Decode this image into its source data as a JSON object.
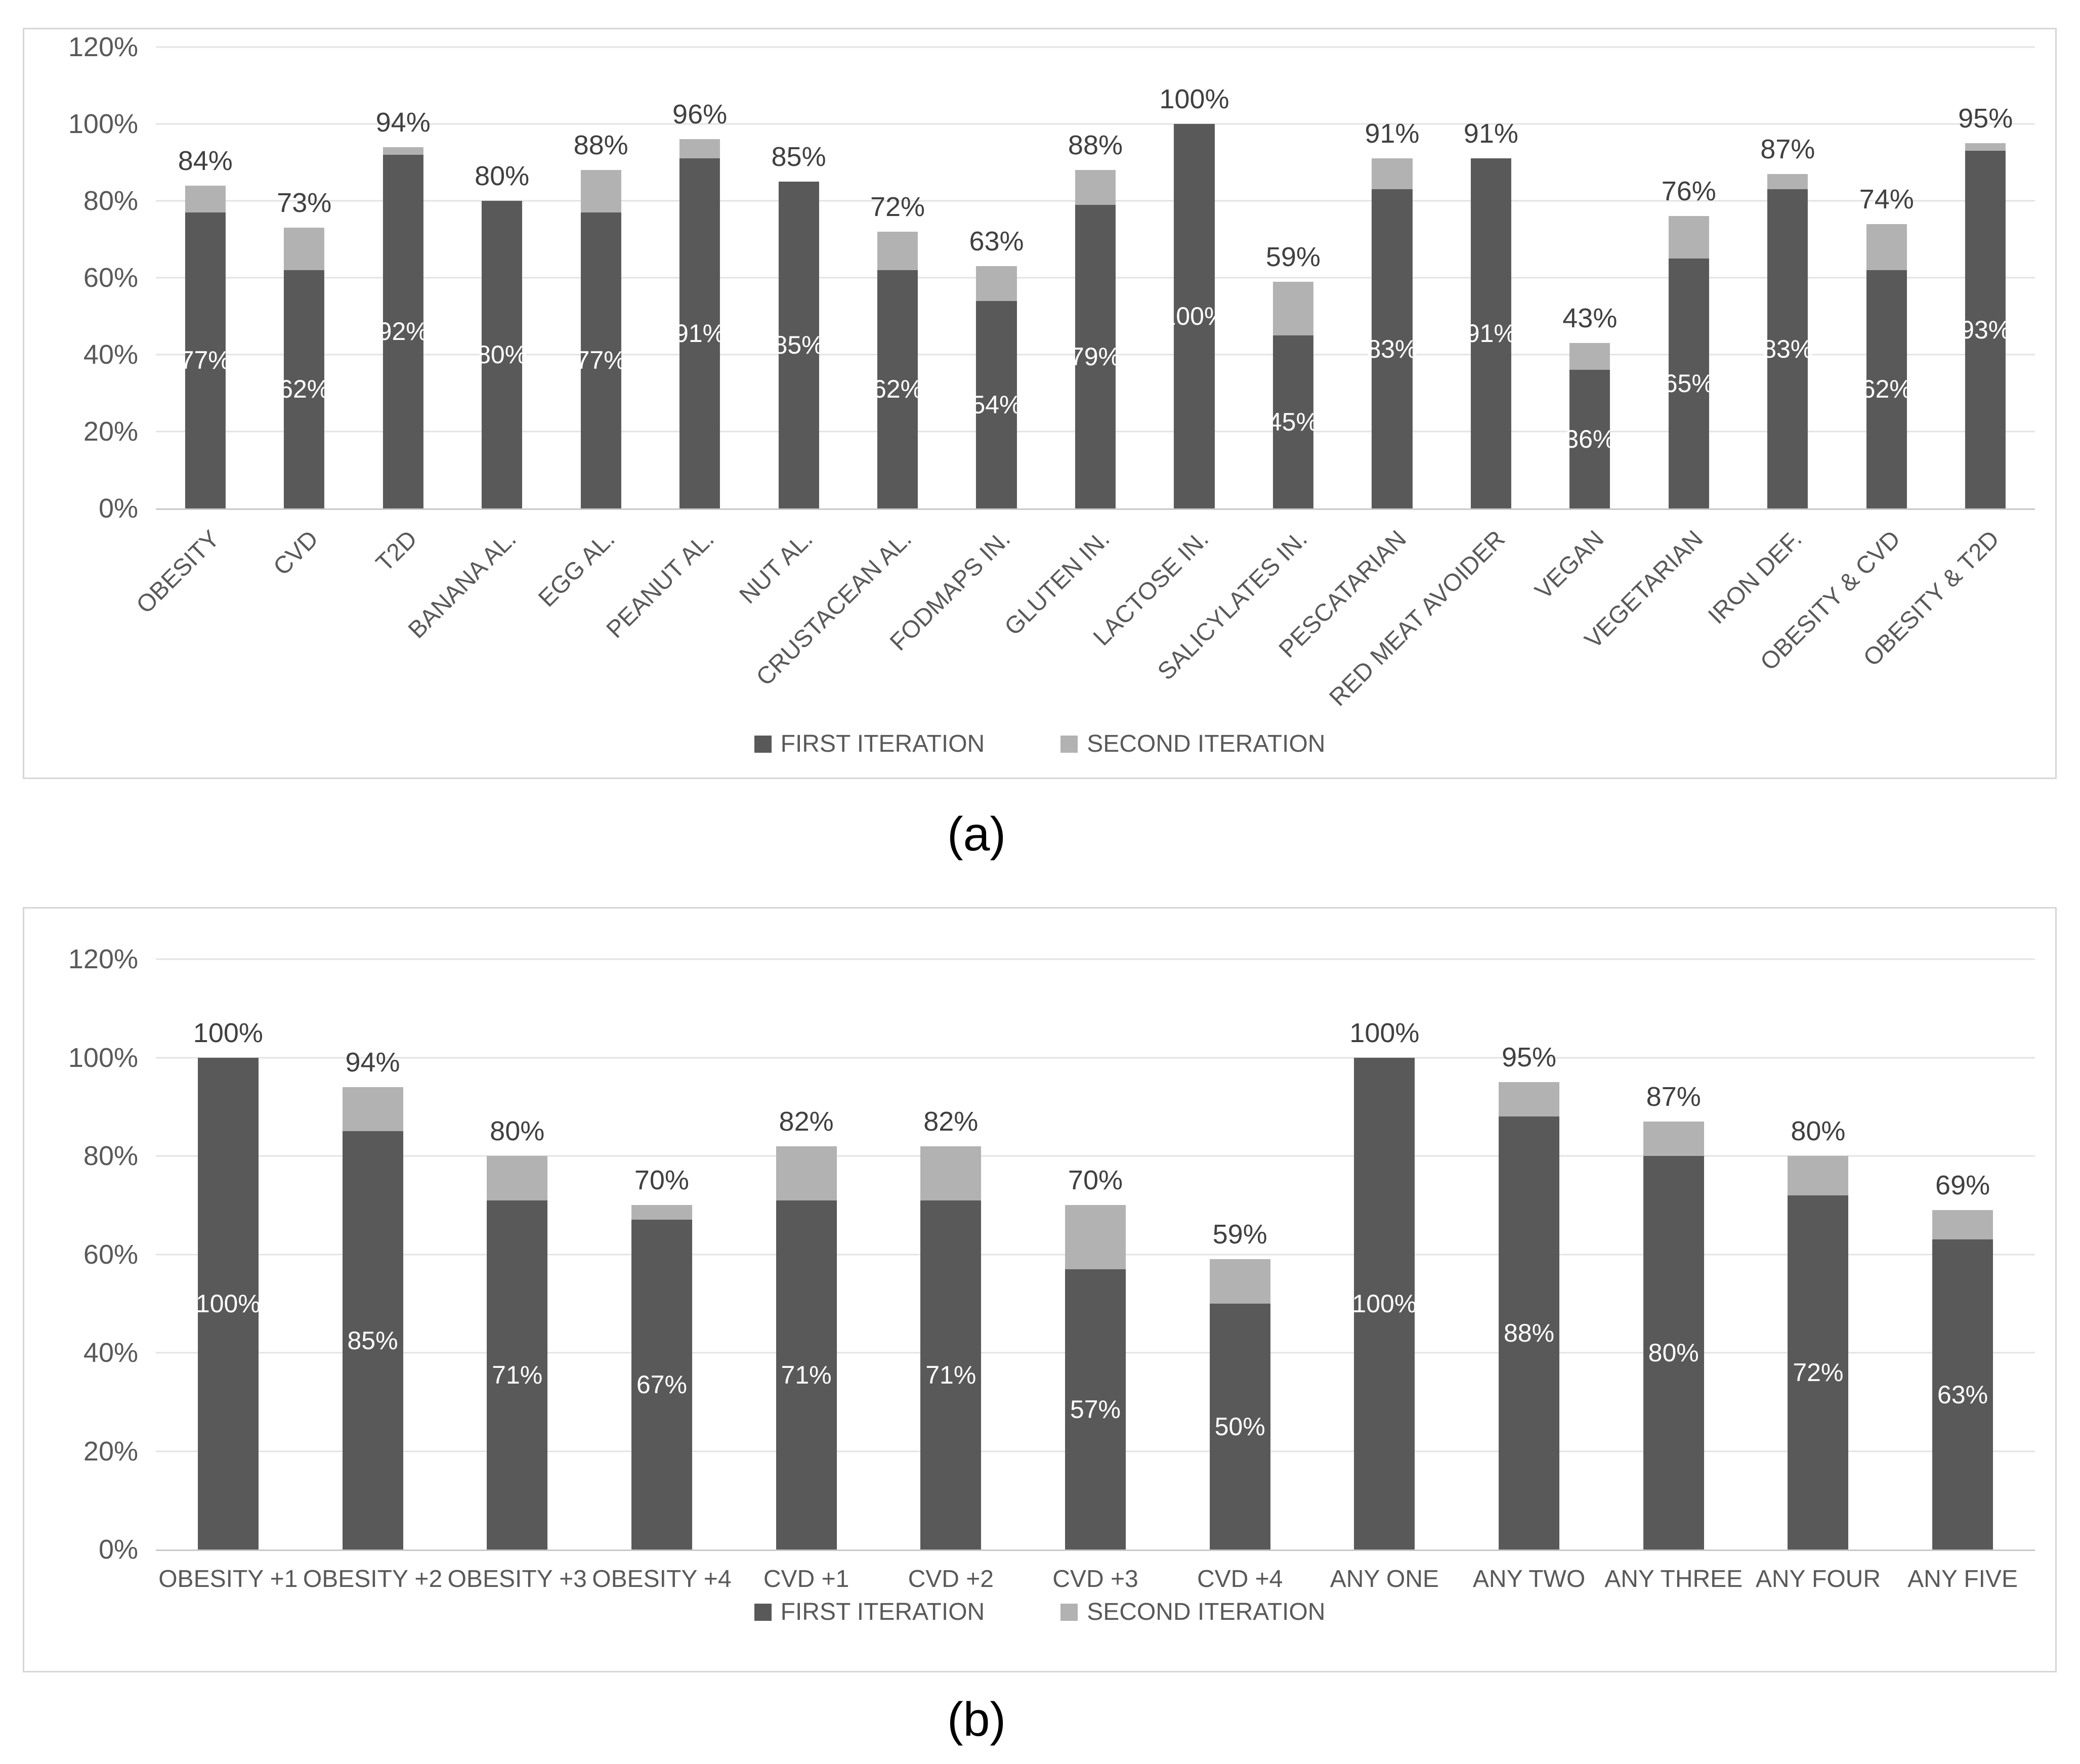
{
  "captions": {
    "a": "(a)",
    "b": "(b)"
  },
  "colors": {
    "first_iteration": "#595959",
    "second_iteration": "#b2b2b2",
    "gridline": "#e3e3e3",
    "axis_line": "#c8c8c8",
    "tick_label": "#595959",
    "total_label": "#404040",
    "inside_label": "#ffffff",
    "panel_border": "#d6d6d6"
  },
  "chart_data": [
    {
      "id": "a",
      "type": "bar",
      "stacked": true,
      "title": "",
      "xlabel": "",
      "ylabel": "",
      "ylim": [
        0,
        120
      ],
      "y_ticks": [
        "0%",
        "20%",
        "40%",
        "60%",
        "80%",
        "100%",
        "120%"
      ],
      "grid": true,
      "legend_position": "bottom",
      "category_label_rotation": -45,
      "categories": [
        "OBESITY",
        "CVD",
        "T2D",
        "BANANA AL.",
        "EGG AL.",
        "PEANUT AL.",
        "NUT AL.",
        "CRUSTACEAN AL.",
        "FODMAPS IN.",
        "GLUTEN IN.",
        "LACTOSE IN.",
        "SALICYLATES IN.",
        "PESCATARIAN",
        "RED MEAT AVOIDER",
        "VEGAN",
        "VEGETARIAN",
        "IRON DEF.",
        "OBESITY & CVD",
        "OBESITY & T2D"
      ],
      "series": [
        {
          "name": "FIRST ITERATION",
          "values": [
            77,
            62,
            92,
            80,
            77,
            91,
            85,
            62,
            54,
            79,
            100,
            45,
            83,
            91,
            36,
            65,
            83,
            62,
            93
          ]
        },
        {
          "name": "SECOND ITERATION",
          "values": [
            7,
            11,
            2,
            0,
            11,
            5,
            0,
            10,
            9,
            9,
            0,
            14,
            8,
            0,
            7,
            11,
            4,
            12,
            2
          ]
        }
      ],
      "totals": [
        84,
        73,
        94,
        80,
        88,
        96,
        85,
        72,
        63,
        88,
        100,
        59,
        91,
        91,
        43,
        76,
        87,
        74,
        95
      ]
    },
    {
      "id": "b",
      "type": "bar",
      "stacked": true,
      "title": "",
      "xlabel": "",
      "ylabel": "",
      "ylim": [
        0,
        120
      ],
      "y_ticks": [
        "0%",
        "20%",
        "40%",
        "60%",
        "80%",
        "100%",
        "120%"
      ],
      "grid": true,
      "legend_position": "bottom",
      "category_label_rotation": 0,
      "categories": [
        "OBESITY +1",
        "OBESITY +2",
        "OBESITY +3",
        "OBESITY +4",
        "CVD +1",
        "CVD +2",
        "CVD +3",
        "CVD +4",
        "ANY ONE",
        "ANY TWO",
        "ANY THREE",
        "ANY FOUR",
        "ANY FIVE"
      ],
      "series": [
        {
          "name": "FIRST ITERATION",
          "values": [
            100,
            85,
            71,
            67,
            71,
            71,
            57,
            50,
            100,
            88,
            80,
            72,
            63
          ]
        },
        {
          "name": "SECOND ITERATION",
          "values": [
            0,
            9,
            9,
            3,
            11,
            11,
            13,
            9,
            0,
            7,
            7,
            8,
            6
          ]
        }
      ],
      "totals": [
        100,
        94,
        80,
        70,
        82,
        82,
        70,
        59,
        100,
        95,
        87,
        80,
        69
      ]
    }
  ]
}
